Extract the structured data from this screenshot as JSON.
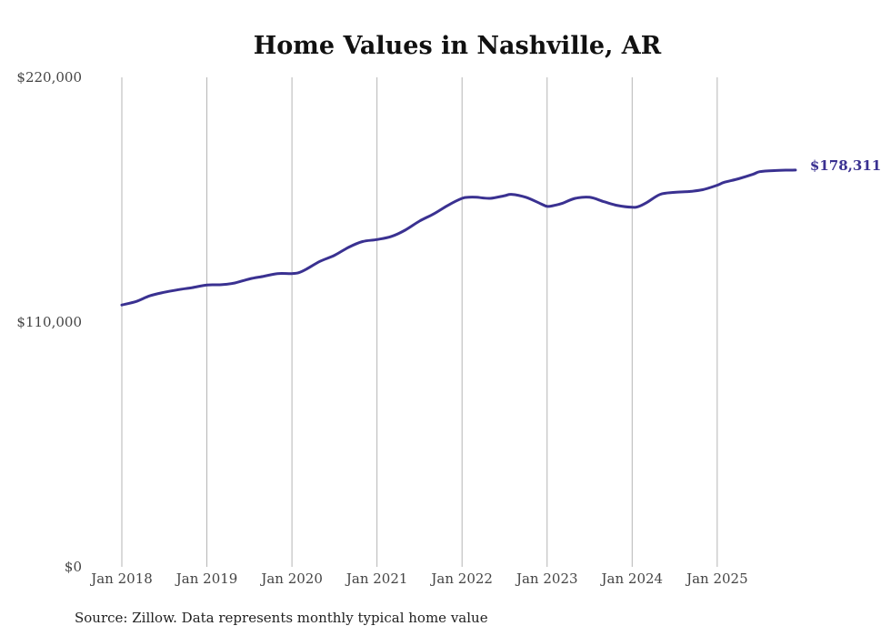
{
  "chart_data": {
    "type": "line",
    "title": "Home Values in Nashville, AR",
    "xlabel": "",
    "ylabel": "",
    "ylim": [
      0,
      220000
    ],
    "yticks": [
      {
        "value": 0,
        "label": "$0"
      },
      {
        "value": 110000,
        "label": "$110,000"
      },
      {
        "value": 220000,
        "label": "$220,000"
      }
    ],
    "xticks": [
      {
        "value": 2018,
        "label": "Jan 2018"
      },
      {
        "value": 2019,
        "label": "Jan 2019"
      },
      {
        "value": 2020,
        "label": "Jan 2020"
      },
      {
        "value": 2021,
        "label": "Jan 2021"
      },
      {
        "value": 2022,
        "label": "Jan 2022"
      },
      {
        "value": 2023,
        "label": "Jan 2023"
      },
      {
        "value": 2024,
        "label": "Jan 2024"
      },
      {
        "value": 2025,
        "label": "Jan 2025"
      }
    ],
    "xlim": [
      2018,
      2025.92
    ],
    "grid": "vertical",
    "series": [
      {
        "name": "Typical home value",
        "color": "#3a3191",
        "end_label": "$178,311",
        "x": [
          2018.0,
          2018.17,
          2018.33,
          2018.5,
          2018.67,
          2018.83,
          2019.0,
          2019.17,
          2019.33,
          2019.5,
          2019.67,
          2019.83,
          2020.0,
          2020.08,
          2020.17,
          2020.33,
          2020.5,
          2020.67,
          2020.83,
          2021.0,
          2021.17,
          2021.33,
          2021.5,
          2021.67,
          2021.83,
          2022.0,
          2022.08,
          2022.17,
          2022.33,
          2022.5,
          2022.58,
          2022.75,
          2022.92,
          2023.0,
          2023.08,
          2023.17,
          2023.33,
          2023.5,
          2023.67,
          2023.83,
          2024.0,
          2024.08,
          2024.17,
          2024.33,
          2024.5,
          2024.67,
          2024.83,
          2025.0,
          2025.08,
          2025.25,
          2025.42,
          2025.5,
          2025.67,
          2025.83,
          2025.92
        ],
        "values": [
          117700,
          119300,
          121800,
          123400,
          124600,
          125500,
          126700,
          126800,
          127600,
          129400,
          130600,
          131800,
          131800,
          132200,
          133800,
          137300,
          140000,
          143700,
          146200,
          147100,
          148500,
          151300,
          155400,
          158700,
          162400,
          165600,
          166100,
          166100,
          165600,
          166800,
          167400,
          166100,
          163300,
          162000,
          162400,
          163300,
          165600,
          166100,
          164100,
          162400,
          161600,
          162000,
          163700,
          167400,
          168300,
          168700,
          169500,
          171500,
          172800,
          174400,
          176400,
          177600,
          178100,
          178300,
          178311
        ]
      }
    ],
    "source_note": "Source: Zillow. Data represents monthly typical home value"
  }
}
